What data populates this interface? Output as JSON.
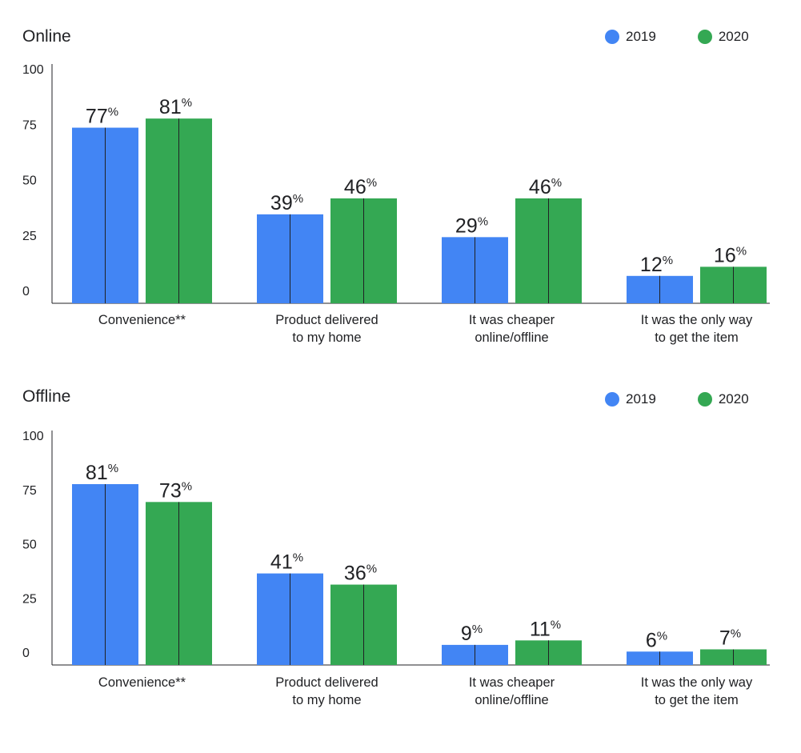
{
  "legend": [
    {
      "name": "2019",
      "color": "#4285F4"
    },
    {
      "name": "2020",
      "color": "#34A853"
    }
  ],
  "chart_data": [
    {
      "type": "bar",
      "title": "Online",
      "categories": [
        [
          "Convenience**"
        ],
        [
          "Product delivered",
          "to my home"
        ],
        [
          "It was cheaper",
          "online/offline"
        ],
        [
          "It was the only way",
          "to get the item"
        ]
      ],
      "series": [
        {
          "name": "2019",
          "values": [
            77,
            39,
            29,
            12
          ],
          "labels": [
            "77",
            "39",
            "29",
            "12"
          ],
          "color": "#4285F4"
        },
        {
          "name": "2020",
          "values": [
            81,
            46,
            46,
            16
          ],
          "labels": [
            "81",
            "46",
            "46",
            "16"
          ],
          "color": "#34A853"
        }
      ],
      "value_suffix": "%",
      "yticks": [
        "0",
        "25",
        "50",
        "75",
        "100"
      ],
      "ylim": [
        0,
        105
      ],
      "legend_position": "top-right",
      "grid": false
    },
    {
      "type": "bar",
      "title": "Offline",
      "categories": [
        [
          "Convenience**"
        ],
        [
          "Product delivered",
          "to my home"
        ],
        [
          "It was cheaper",
          "online/offline"
        ],
        [
          "It was the only way",
          "to get the item"
        ]
      ],
      "series": [
        {
          "name": "2019",
          "values": [
            81,
            41,
            9,
            6
          ],
          "labels": [
            "81",
            "41",
            "9",
            "6"
          ],
          "color": "#4285F4"
        },
        {
          "name": "2020",
          "values": [
            73,
            36,
            11,
            7
          ],
          "labels": [
            "73",
            "36",
            "11",
            "7"
          ],
          "color": "#34A853"
        }
      ],
      "value_suffix": "%",
      "yticks": [
        "0",
        "25",
        "50",
        "75",
        "100"
      ],
      "ylim": [
        0,
        105
      ],
      "legend_position": "top-right",
      "grid": false
    }
  ]
}
